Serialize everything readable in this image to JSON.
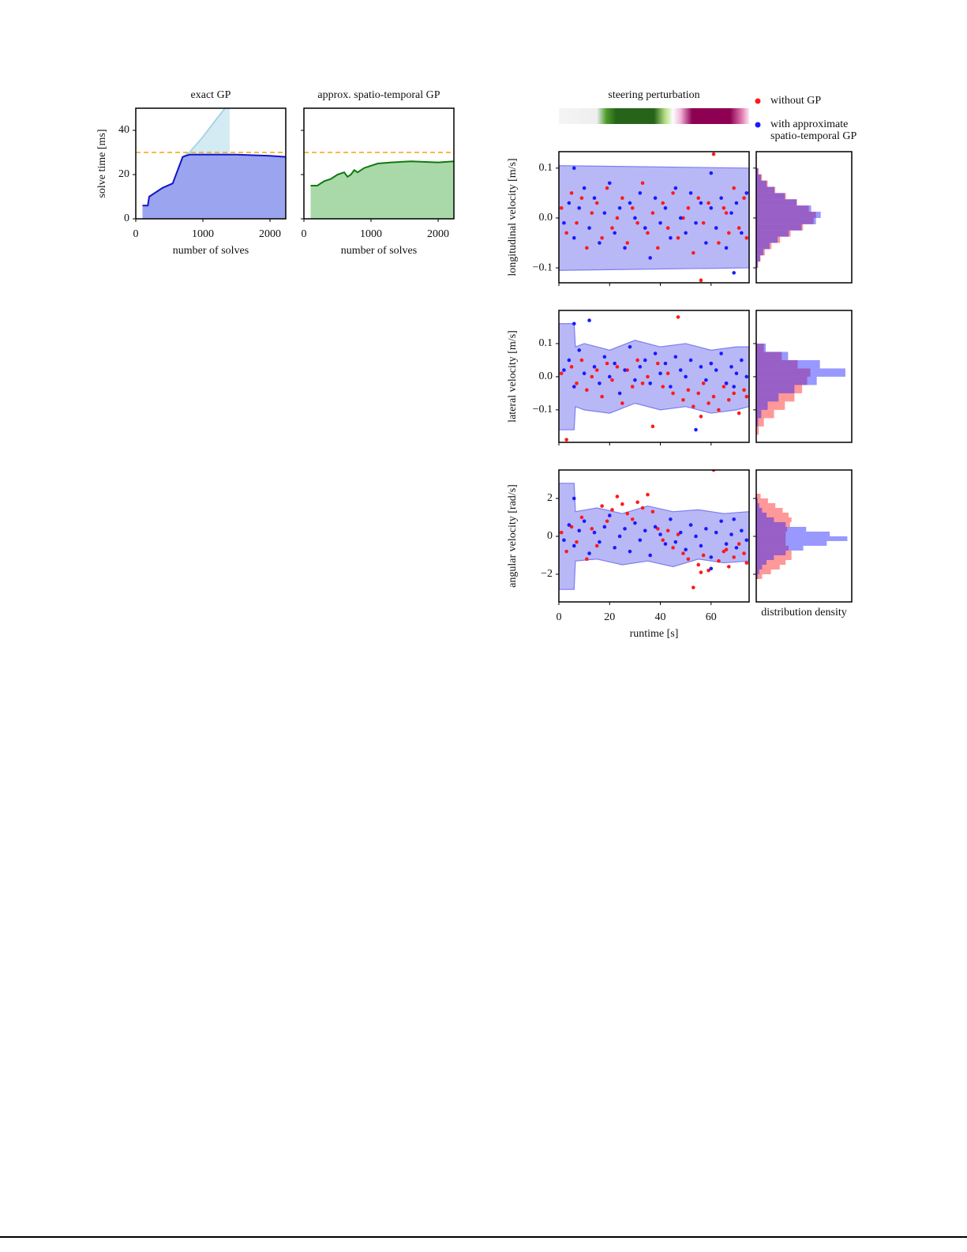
{
  "chart_data": [
    {
      "type": "line",
      "title": "exact GP",
      "xlabel": "number of solves",
      "ylabel": "solve time [ms]",
      "xlim": [
        0,
        2235
      ],
      "ylim": [
        0,
        50
      ],
      "xticks": [
        0,
        1000,
        2000
      ],
      "yticks": [
        0,
        20,
        40
      ],
      "hline": {
        "value": 30,
        "color": "#f0a30a"
      },
      "series": [
        {
          "color": "#a9d4e6",
          "fill": "#d5ebf4",
          "x": [
            100,
            180,
            200,
            400,
            550,
            600,
            700,
            800,
            1000,
            1200,
            1330,
            1400
          ],
          "values": [
            6,
            6,
            10,
            14,
            16,
            20,
            28,
            30,
            37,
            45,
            50,
            53
          ]
        },
        {
          "color": "#1515c8",
          "fill": "#9aa4ef",
          "x": [
            100,
            180,
            200,
            400,
            550,
            600,
            700,
            800,
            1000,
            1500,
            2000,
            2235
          ],
          "values": [
            6,
            6,
            10,
            14,
            16,
            20,
            28,
            29,
            29,
            29,
            28.5,
            28
          ]
        }
      ]
    },
    {
      "type": "line",
      "title": "approx. spatio-temporal GP",
      "xlabel": "number of solves",
      "xlim": [
        0,
        2235
      ],
      "ylim": [
        0,
        50
      ],
      "xticks": [
        0,
        1000,
        2000
      ],
      "sharey": true,
      "hline": {
        "value": 30,
        "color": "#f0a30a"
      },
      "series": [
        {
          "color": "#0e7a0e",
          "fill": "#a9d9a9",
          "x": [
            100,
            200,
            300,
            400,
            500,
            600,
            650,
            700,
            750,
            800,
            900,
            1000,
            1100,
            1300,
            1600,
            2000,
            2235
          ],
          "values": [
            15,
            15,
            17,
            18,
            20,
            21,
            19,
            20,
            22,
            21,
            23,
            24,
            25,
            25.5,
            26,
            25.5,
            26
          ]
        }
      ]
    },
    {
      "type": "scatter",
      "title": "steering perturbation",
      "ylabel": "longitudinal velocity [m/s]",
      "legend": "top-right",
      "xlim": [
        0,
        75
      ],
      "ylim": [
        -0.13,
        0.133
      ],
      "sharex": true,
      "yticks": [
        0.1,
        {
          "value": 0,
          "label": "0.0"
        },
        {
          "value": -0.1,
          "label": "−0.1"
        }
      ],
      "band": {
        "color": "#7d7df0",
        "x": [
          0,
          75
        ],
        "upper": [
          0.105,
          0.1
        ],
        "lower": [
          -0.105,
          -0.1
        ]
      },
      "hist_bins": [
        -0.1,
        -0.0875,
        -0.075,
        -0.0625,
        -0.05,
        -0.0375,
        -0.025,
        -0.0125,
        0,
        0.0125,
        0.025,
        0.0375,
        0.05,
        0.0625,
        0.075,
        0.0875,
        0.1
      ],
      "hist_xlim": [
        0,
        20
      ],
      "series": [
        {
          "name": "without GP",
          "color": "#ff1a1a",
          "x": [
            1,
            3,
            5,
            7,
            9,
            11,
            13,
            15,
            17,
            19,
            21,
            23,
            25,
            27,
            29,
            31,
            33,
            35,
            37,
            39,
            41,
            43,
            45,
            47,
            49,
            51,
            53,
            55,
            57,
            59,
            61,
            63,
            65,
            67,
            69,
            71,
            73,
            74,
            56,
            66
          ],
          "values": [
            0.02,
            -0.03,
            0.05,
            -0.01,
            0.04,
            -0.06,
            0.01,
            0.03,
            -0.04,
            0.06,
            -0.02,
            0.0,
            0.04,
            -0.05,
            0.02,
            -0.01,
            0.07,
            -0.03,
            0.01,
            -0.06,
            0.03,
            -0.02,
            0.05,
            -0.04,
            0.0,
            0.02,
            -0.07,
            0.04,
            -0.01,
            0.03,
            0.128,
            -0.05,
            0.02,
            -0.03,
            0.06,
            -0.02,
            0.04,
            -0.04,
            -0.125,
            0.01
          ],
          "hist": [
            0.4,
            0.9,
            1.8,
            3.2,
            5,
            7.2,
            9.8,
            12,
            12.5,
            11,
            8.5,
            6.2,
            4,
            2.4,
            1.2,
            0.5
          ]
        },
        {
          "name": "with approximate spatio-temporal GP",
          "color": "#1a1aff",
          "x": [
            2,
            4,
            6,
            8,
            10,
            12,
            14,
            16,
            18,
            20,
            22,
            24,
            26,
            28,
            30,
            32,
            34,
            36,
            38,
            40,
            42,
            44,
            46,
            48,
            50,
            52,
            54,
            56,
            58,
            60,
            62,
            64,
            66,
            68,
            70,
            72,
            74,
            6,
            60,
            69
          ],
          "values": [
            -0.01,
            0.03,
            -0.04,
            0.02,
            0.06,
            -0.02,
            0.04,
            -0.05,
            0.01,
            0.07,
            -0.03,
            0.02,
            -0.06,
            0.03,
            0.0,
            0.05,
            -0.02,
            -0.08,
            0.04,
            -0.01,
            0.02,
            -0.04,
            0.06,
            0.0,
            -0.03,
            0.05,
            -0.01,
            0.03,
            -0.05,
            0.02,
            -0.02,
            0.04,
            -0.06,
            0.01,
            0.03,
            -0.03,
            0.05,
            0.1,
            0.09,
            -0.11
          ],
          "hist": [
            0.3,
            0.8,
            1.5,
            2.8,
            4.5,
            6.8,
            9.5,
            12.5,
            13.5,
            11.5,
            8.5,
            6,
            3.8,
            2.2,
            1,
            0.4
          ]
        }
      ]
    },
    {
      "type": "scatter",
      "ylabel": "lateral velocity [m/s]",
      "xlim": [
        0,
        75
      ],
      "ylim": [
        -0.198,
        0.2
      ],
      "sharex": true,
      "yticks": [
        0.1,
        {
          "value": 0,
          "label": "0.0"
        },
        {
          "value": -0.1,
          "label": "−0.1"
        }
      ],
      "band": {
        "color": "#7d7df0",
        "x": [
          0,
          6,
          6.5,
          10,
          20,
          30,
          40,
          50,
          60,
          70,
          75
        ],
        "upper": [
          0.16,
          0.16,
          0.09,
          0.1,
          0.08,
          0.11,
          0.09,
          0.1,
          0.08,
          0.09,
          0.09
        ],
        "lower": [
          -0.16,
          -0.16,
          -0.09,
          -0.1,
          -0.11,
          -0.08,
          -0.1,
          -0.09,
          -0.11,
          -0.1,
          -0.09
        ]
      },
      "hist_bins": [
        -0.175,
        -0.15,
        -0.125,
        -0.1,
        -0.075,
        -0.05,
        -0.025,
        0,
        0.025,
        0.05,
        0.075,
        0.1
      ],
      "hist_xlim": [
        0,
        15
      ],
      "series": [
        {
          "color": "#ff1a1a",
          "x": [
            1,
            3,
            5,
            7,
            9,
            11,
            13,
            15,
            17,
            19,
            21,
            23,
            25,
            27,
            29,
            31,
            33,
            35,
            37,
            39,
            41,
            43,
            45,
            47,
            49,
            51,
            53,
            55,
            57,
            59,
            61,
            63,
            65,
            67,
            69,
            71,
            73,
            74,
            56,
            66
          ],
          "values": [
            0.01,
            -0.19,
            0.03,
            -0.02,
            0.05,
            -0.04,
            0.0,
            0.02,
            -0.06,
            0.04,
            -0.01,
            0.03,
            -0.08,
            0.02,
            -0.03,
            0.05,
            -0.02,
            0.0,
            -0.15,
            0.04,
            -0.03,
            0.01,
            -0.05,
            0.18,
            -0.07,
            -0.04,
            -0.09,
            -0.05,
            -0.02,
            -0.08,
            -0.06,
            -0.1,
            -0.03,
            -0.07,
            -0.05,
            -0.11,
            -0.04,
            -0.06,
            -0.12,
            -0.02
          ],
          "hist": [
            0.4,
            1.2,
            2.8,
            4.5,
            6,
            7.2,
            8,
            8.5,
            6.5,
            4,
            1.2
          ]
        },
        {
          "color": "#1a1aff",
          "x": [
            2,
            4,
            6,
            8,
            10,
            12,
            14,
            16,
            18,
            20,
            22,
            24,
            26,
            28,
            30,
            32,
            34,
            36,
            38,
            40,
            42,
            44,
            46,
            48,
            50,
            52,
            54,
            56,
            58,
            60,
            62,
            64,
            66,
            68,
            70,
            72,
            74,
            6,
            60,
            69
          ],
          "values": [
            0.02,
            0.05,
            -0.03,
            0.08,
            0.01,
            0.17,
            0.03,
            -0.02,
            0.06,
            0.0,
            0.04,
            -0.05,
            0.02,
            0.09,
            -0.01,
            0.03,
            0.05,
            -0.02,
            0.07,
            0.01,
            0.04,
            -0.03,
            0.06,
            0.02,
            0.0,
            0.05,
            -0.16,
            0.03,
            -0.01,
            0.04,
            0.02,
            0.07,
            -0.02,
            0.03,
            0.01,
            0.05,
            0.0,
            0.16,
            0.04,
            -0.03
          ],
          "hist": [
            0,
            0.3,
            0.8,
            1.8,
            3.5,
            6,
            9.5,
            14,
            10,
            5,
            1.5
          ]
        }
      ]
    },
    {
      "type": "scatter",
      "ylabel": "angular velocity [rad/s]",
      "xlabel": "runtime [s]",
      "hist_label": "distribution density",
      "xlim": [
        0,
        75
      ],
      "ylim": [
        -3.46,
        3.5
      ],
      "xticks": [
        0,
        20,
        40,
        60
      ],
      "yticks": [
        2,
        0,
        {
          "value": -2,
          "label": "−2"
        }
      ],
      "band": {
        "color": "#7d7df0",
        "x": [
          0,
          6,
          6.5,
          15,
          25,
          35,
          45,
          55,
          65,
          75
        ],
        "upper": [
          2.8,
          2.8,
          1.3,
          1.5,
          1.2,
          1.6,
          1.3,
          1.4,
          1.2,
          1.3
        ],
        "lower": [
          -2.8,
          -2.8,
          -1.3,
          -1.2,
          -1.5,
          -1.3,
          -1.6,
          -1.2,
          -1.4,
          -1.3
        ]
      },
      "hist_bins": [
        -2.25,
        -2,
        -1.75,
        -1.5,
        -1.25,
        -1,
        -0.75,
        -0.5,
        -0.25,
        0,
        0.25,
        0.5,
        0.75,
        1,
        1.25,
        1.5,
        1.75,
        2,
        2.25
      ],
      "hist_xlim": [
        0,
        0.65
      ],
      "series": [
        {
          "color": "#ff1a1a",
          "x": [
            1,
            3,
            5,
            7,
            9,
            11,
            13,
            15,
            17,
            19,
            21,
            23,
            25,
            27,
            29,
            31,
            33,
            35,
            37,
            39,
            41,
            43,
            45,
            47,
            49,
            51,
            53,
            55,
            57,
            59,
            61,
            63,
            65,
            67,
            69,
            71,
            73,
            74,
            56,
            66
          ],
          "values": [
            0.2,
            -0.8,
            0.5,
            -0.3,
            1.0,
            -1.2,
            0.4,
            -0.5,
            1.6,
            0.8,
            1.4,
            2.1,
            1.7,
            1.2,
            0.9,
            1.8,
            1.5,
            2.2,
            1.3,
            0.4,
            -0.2,
            0.3,
            -0.6,
            0.1,
            -0.9,
            -1.2,
            -2.7,
            -1.5,
            -1.0,
            -1.8,
            3.5,
            -1.3,
            -0.8,
            -1.6,
            -1.1,
            -0.4,
            -0.9,
            -1.4,
            -1.9,
            -0.7
          ],
          "hist": [
            0.04,
            0.1,
            0.16,
            0.2,
            0.24,
            0.24,
            0.22,
            0.2,
            0.2,
            0.2,
            0.21,
            0.23,
            0.24,
            0.22,
            0.18,
            0.13,
            0.08,
            0.03
          ]
        },
        {
          "color": "#1a1aff",
          "x": [
            2,
            4,
            6,
            8,
            10,
            12,
            14,
            16,
            18,
            20,
            22,
            24,
            26,
            28,
            30,
            32,
            34,
            36,
            38,
            40,
            42,
            44,
            46,
            48,
            50,
            52,
            54,
            56,
            58,
            60,
            62,
            64,
            66,
            68,
            70,
            72,
            74,
            6,
            60,
            69
          ],
          "values": [
            -0.2,
            0.6,
            -0.5,
            0.3,
            0.8,
            -0.9,
            0.2,
            -0.3,
            0.5,
            1.1,
            -0.6,
            0.0,
            0.4,
            -0.8,
            0.7,
            -0.2,
            0.3,
            -1.0,
            0.5,
            0.1,
            -0.4,
            0.9,
            -0.3,
            0.2,
            -0.7,
            0.6,
            0.0,
            -0.5,
            0.4,
            -1.1,
            0.2,
            0.8,
            -0.4,
            0.1,
            -0.6,
            0.3,
            -0.2,
            2.0,
            -1.7,
            0.9
          ],
          "hist": [
            0.01,
            0.02,
            0.04,
            0.07,
            0.12,
            0.2,
            0.32,
            0.48,
            0.62,
            0.5,
            0.34,
            0.2,
            0.12,
            0.07,
            0.04,
            0.02,
            0.01,
            0.005
          ]
        }
      ]
    }
  ]
}
